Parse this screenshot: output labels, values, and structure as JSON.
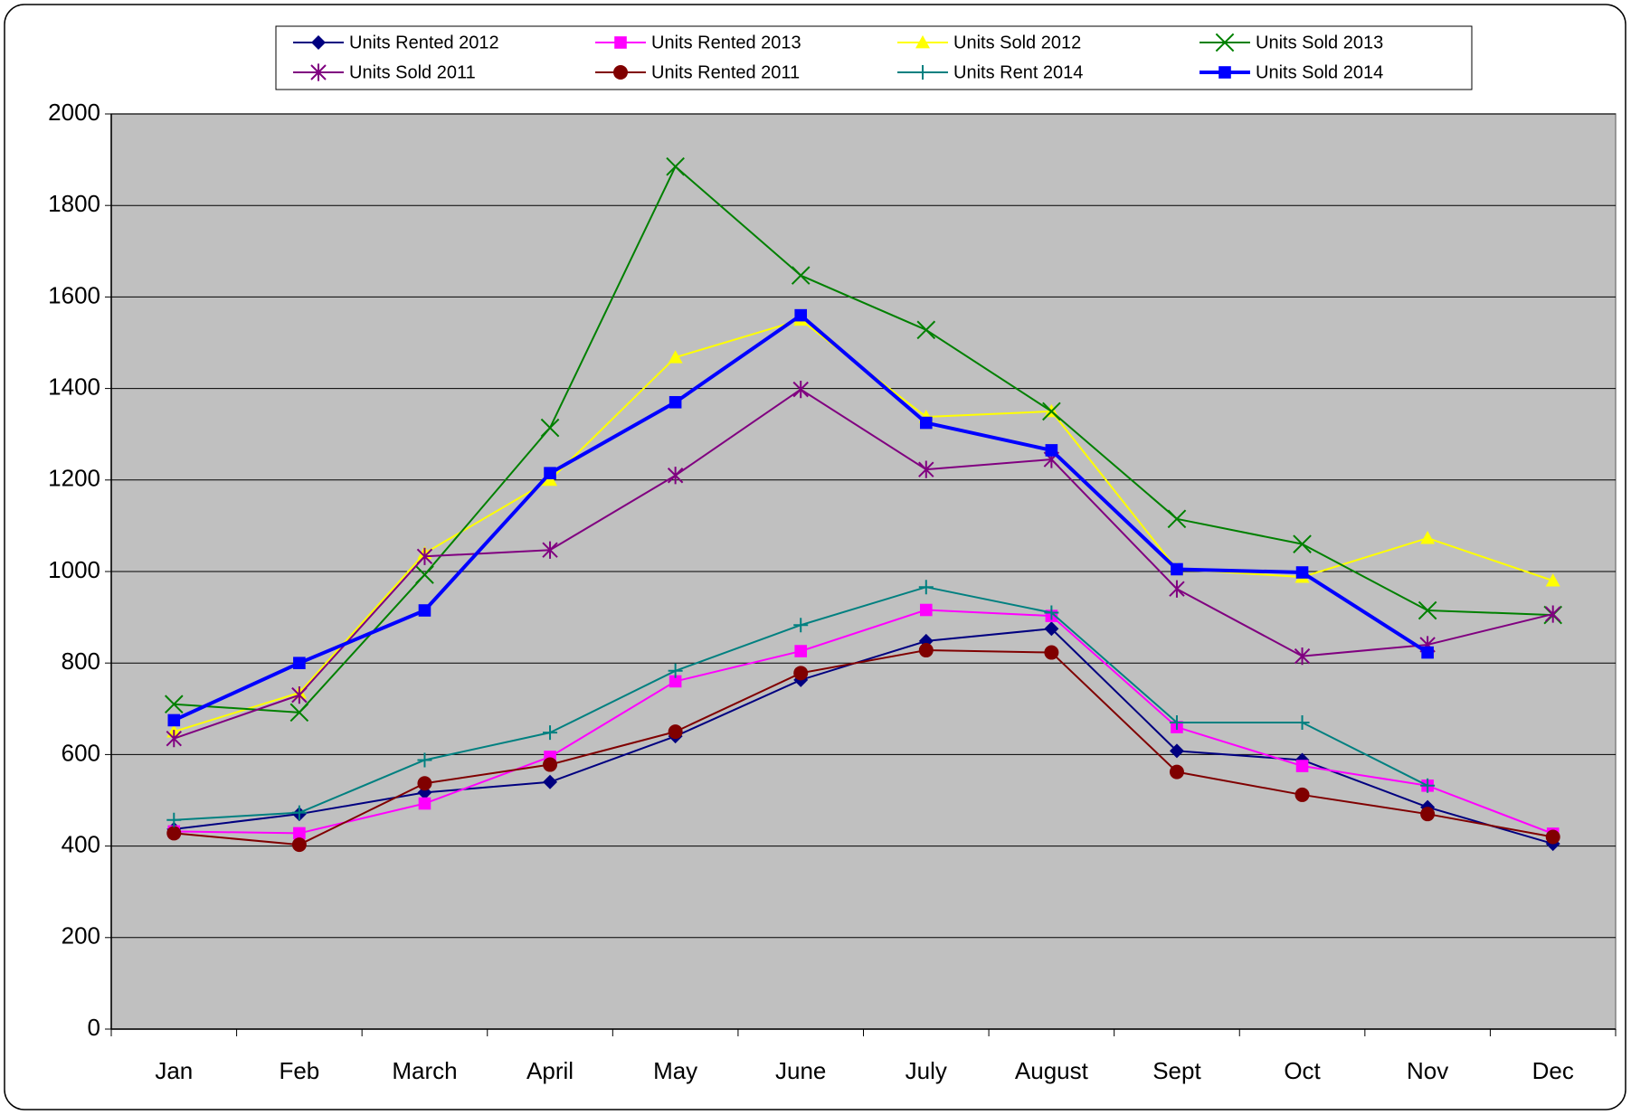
{
  "chart_data": {
    "type": "line",
    "categories": [
      "Jan",
      "Feb",
      "March",
      "April",
      "May",
      "June",
      "July",
      "August",
      "Sept",
      "Oct",
      "Nov",
      "Dec"
    ],
    "ylim": [
      0,
      2000
    ],
    "yticks": [
      0,
      200,
      400,
      600,
      800,
      1000,
      1200,
      1400,
      1600,
      1800,
      2000
    ],
    "grid": true,
    "legend": "top",
    "series": [
      {
        "name": "Units Rented 2012",
        "color": "#000080",
        "marker": "diamond",
        "line_width": 2,
        "values": [
          437,
          470,
          517,
          540,
          640,
          763,
          848,
          875,
          608,
          588,
          485,
          405
        ]
      },
      {
        "name": "Units Rented 2013",
        "color": "#ff00ff",
        "marker": "square",
        "line_width": 2,
        "values": [
          432,
          428,
          493,
          595,
          760,
          826,
          916,
          903,
          660,
          575,
          532,
          427
        ]
      },
      {
        "name": "Units Sold 2012",
        "color": "#ffff00",
        "marker": "triangle",
        "line_width": 2,
        "values": [
          650,
          735,
          1040,
          1200,
          1468,
          1550,
          1338,
          1350,
          1005,
          988,
          1073,
          980
        ]
      },
      {
        "name": "Units Sold 2013",
        "color": "#008000",
        "marker": "x",
        "line_width": 2,
        "values": [
          710,
          692,
          993,
          1314,
          1885,
          1647,
          1528,
          1350,
          1115,
          1060,
          915,
          905
        ]
      },
      {
        "name": "Units Sold 2011",
        "color": "#800080",
        "marker": "star",
        "line_width": 2,
        "values": [
          635,
          730,
          1033,
          1047,
          1210,
          1398,
          1223,
          1245,
          962,
          815,
          840,
          907
        ]
      },
      {
        "name": "Units Rented 2011",
        "color": "#800000",
        "marker": "circle",
        "line_width": 2,
        "values": [
          428,
          403,
          537,
          578,
          650,
          778,
          828,
          823,
          562,
          512,
          470,
          420
        ]
      },
      {
        "name": "Units Rent 2014",
        "color": "#008080",
        "marker": "plus",
        "line_width": 2,
        "values": [
          457,
          473,
          588,
          648,
          783,
          883,
          966,
          910,
          670,
          670,
          532,
          null
        ]
      },
      {
        "name": "Units Sold 2014",
        "color": "#0000ff",
        "marker": "square",
        "line_width": 4,
        "values": [
          675,
          800,
          915,
          1215,
          1370,
          1560,
          1325,
          1265,
          1005,
          998,
          823,
          null
        ]
      }
    ]
  }
}
